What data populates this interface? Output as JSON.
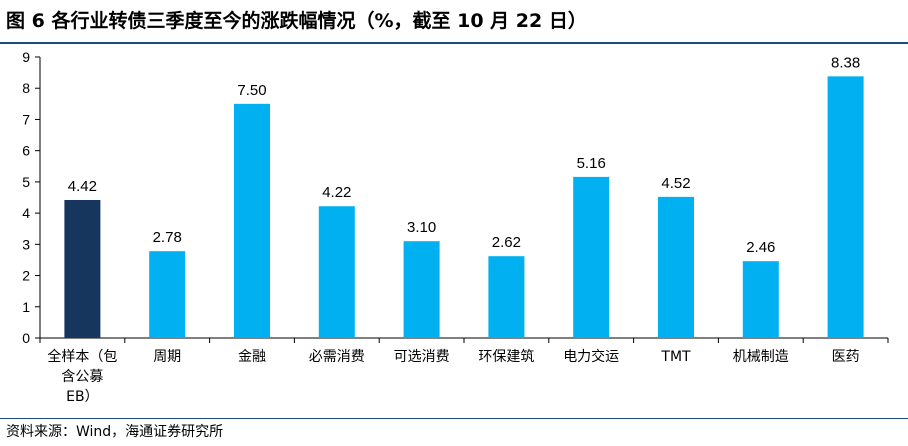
{
  "title": "图 6  各行业转债三季度至今的涨跌幅情况（%，截至 10 月 22 日）",
  "source": "资料来源：Wind，海通证券研究所",
  "colors": {
    "highlight": "#17365d",
    "bar": "#00b0f0",
    "rule": "#1f4e79"
  },
  "chart_data": {
    "type": "bar",
    "categories": [
      "全样本（包含公募EB）",
      "周期",
      "金融",
      "必需消费",
      "可选消费",
      "环保建筑",
      "电力交运",
      "TMT",
      "机械制造",
      "医药"
    ],
    "category_lines": [
      [
        "全样本（包",
        "含公募",
        "EB）"
      ],
      [
        "周期"
      ],
      [
        "金融"
      ],
      [
        "必需消费"
      ],
      [
        "可选消费"
      ],
      [
        "环保建筑"
      ],
      [
        "电力交运"
      ],
      [
        "TMT"
      ],
      [
        "机械制造"
      ],
      [
        "医药"
      ]
    ],
    "values": [
      4.42,
      2.78,
      7.5,
      4.22,
      3.1,
      2.62,
      5.16,
      4.52,
      2.46,
      8.38
    ],
    "value_labels": [
      "4.42",
      "2.78",
      "7.50",
      "4.22",
      "3.10",
      "2.62",
      "5.16",
      "4.52",
      "2.46",
      "8.38"
    ],
    "highlight_index": 0,
    "ylim": [
      0,
      9
    ],
    "yticks": [
      "0",
      "1",
      "2",
      "3",
      "4",
      "5",
      "6",
      "7",
      "8",
      "9"
    ],
    "xlabel": "",
    "ylabel": "",
    "grid": false,
    "legend": "none"
  }
}
